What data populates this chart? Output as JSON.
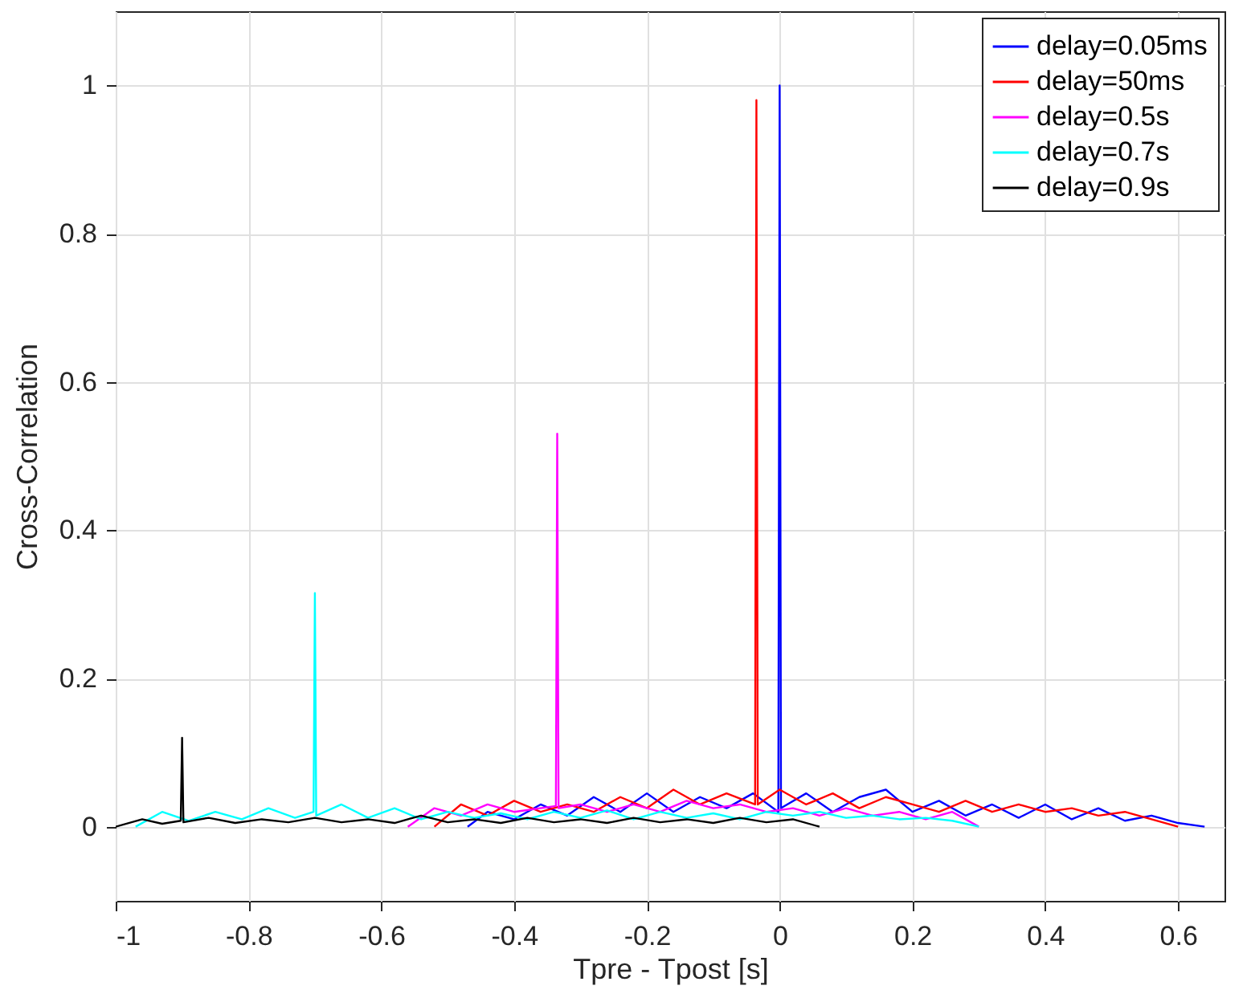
{
  "chart_data": {
    "type": "line",
    "xlabel": "Tpre - Tpost [s]",
    "ylabel": "Cross-Correlation",
    "xlim": [
      -1,
      0.67
    ],
    "xticks": [
      -1,
      -0.8,
      -0.6,
      -0.4,
      -0.2,
      0,
      0.2,
      0.4,
      0.6
    ],
    "ylim": [
      -0.1,
      1.1
    ],
    "yticks": [
      0,
      0.2,
      0.4,
      0.6,
      0.8,
      1
    ],
    "grid": true,
    "legend": "top right",
    "marker": "none",
    "line_style": "solid",
    "series": [
      {
        "name": "delay=0.05ms",
        "color": "#0000ff",
        "x": [
          -0.47,
          -0.44,
          -0.4,
          -0.36,
          -0.32,
          -0.28,
          -0.24,
          -0.2,
          -0.16,
          -0.12,
          -0.08,
          -0.04,
          -0.002,
          0,
          0.002,
          0.04,
          0.08,
          0.12,
          0.16,
          0.2,
          0.24,
          0.28,
          0.32,
          0.36,
          0.4,
          0.44,
          0.48,
          0.52,
          0.56,
          0.6,
          0.64
        ],
        "values": [
          0,
          0.02,
          0.01,
          0.03,
          0.015,
          0.04,
          0.02,
          0.045,
          0.02,
          0.04,
          0.025,
          0.045,
          0.02,
          1,
          0.025,
          0.045,
          0.02,
          0.04,
          0.05,
          0.02,
          0.035,
          0.015,
          0.03,
          0.012,
          0.03,
          0.01,
          0.025,
          0.008,
          0.015,
          0.005,
          0
        ]
      },
      {
        "name": "delay=50ms",
        "color": "#ff0000",
        "x": [
          -0.52,
          -0.48,
          -0.44,
          -0.4,
          -0.36,
          -0.32,
          -0.28,
          -0.24,
          -0.2,
          -0.16,
          -0.12,
          -0.08,
          -0.037,
          -0.035,
          -0.033,
          0,
          0.04,
          0.08,
          0.12,
          0.16,
          0.2,
          0.24,
          0.28,
          0.32,
          0.36,
          0.4,
          0.44,
          0.48,
          0.52,
          0.56,
          0.6
        ],
        "values": [
          0,
          0.03,
          0.015,
          0.035,
          0.02,
          0.03,
          0.02,
          0.04,
          0.025,
          0.05,
          0.03,
          0.045,
          0.03,
          0.98,
          0.03,
          0.05,
          0.03,
          0.045,
          0.025,
          0.04,
          0.03,
          0.02,
          0.035,
          0.02,
          0.03,
          0.02,
          0.025,
          0.015,
          0.02,
          0.01,
          0
        ]
      },
      {
        "name": "delay=0.5s",
        "color": "#ff00ff",
        "x": [
          -0.56,
          -0.52,
          -0.48,
          -0.44,
          -0.4,
          -0.337,
          -0.335,
          -0.333,
          -0.3,
          -0.26,
          -0.22,
          -0.18,
          -0.14,
          -0.1,
          -0.06,
          -0.02,
          0.02,
          0.06,
          0.1,
          0.14,
          0.18,
          0.22,
          0.26,
          0.3
        ],
        "values": [
          0,
          0.025,
          0.015,
          0.03,
          0.02,
          0.028,
          0.53,
          0.025,
          0.03,
          0.02,
          0.03,
          0.02,
          0.035,
          0.025,
          0.03,
          0.02,
          0.025,
          0.015,
          0.025,
          0.015,
          0.02,
          0.01,
          0.02,
          0
        ]
      },
      {
        "name": "delay=0.7s",
        "color": "#00ffff",
        "x": [
          -0.97,
          -0.93,
          -0.89,
          -0.85,
          -0.81,
          -0.77,
          -0.73,
          -0.702,
          -0.7,
          -0.698,
          -0.66,
          -0.62,
          -0.58,
          -0.54,
          -0.5,
          -0.46,
          -0.42,
          -0.38,
          -0.34,
          -0.3,
          -0.26,
          -0.22,
          -0.18,
          -0.14,
          -0.1,
          -0.06,
          -0.02,
          0.02,
          0.06,
          0.1,
          0.14,
          0.18,
          0.22,
          0.26,
          0.3
        ],
        "values": [
          0,
          0.02,
          0.008,
          0.02,
          0.01,
          0.025,
          0.012,
          0.02,
          0.315,
          0.015,
          0.03,
          0.012,
          0.025,
          0.01,
          0.02,
          0.012,
          0.018,
          0.01,
          0.02,
          0.012,
          0.022,
          0.01,
          0.02,
          0.012,
          0.018,
          0.01,
          0.02,
          0.015,
          0.02,
          0.012,
          0.015,
          0.01,
          0.012,
          0.008,
          0
        ]
      },
      {
        "name": "delay=0.9s",
        "color": "#000000",
        "x": [
          -1,
          -0.96,
          -0.93,
          -0.902,
          -0.9,
          -0.898,
          -0.86,
          -0.82,
          -0.78,
          -0.74,
          -0.7,
          -0.66,
          -0.62,
          -0.58,
          -0.54,
          -0.5,
          -0.46,
          -0.42,
          -0.38,
          -0.34,
          -0.3,
          -0.26,
          -0.22,
          -0.18,
          -0.14,
          -0.1,
          -0.06,
          -0.02,
          0.02,
          0.06
        ],
        "values": [
          0,
          0.01,
          0.004,
          0.008,
          0.12,
          0.006,
          0.012,
          0.005,
          0.01,
          0.006,
          0.012,
          0.006,
          0.01,
          0.005,
          0.015,
          0.006,
          0.01,
          0.005,
          0.012,
          0.006,
          0.01,
          0.005,
          0.012,
          0.006,
          0.01,
          0.005,
          0.012,
          0.006,
          0.01,
          0
        ]
      }
    ]
  }
}
